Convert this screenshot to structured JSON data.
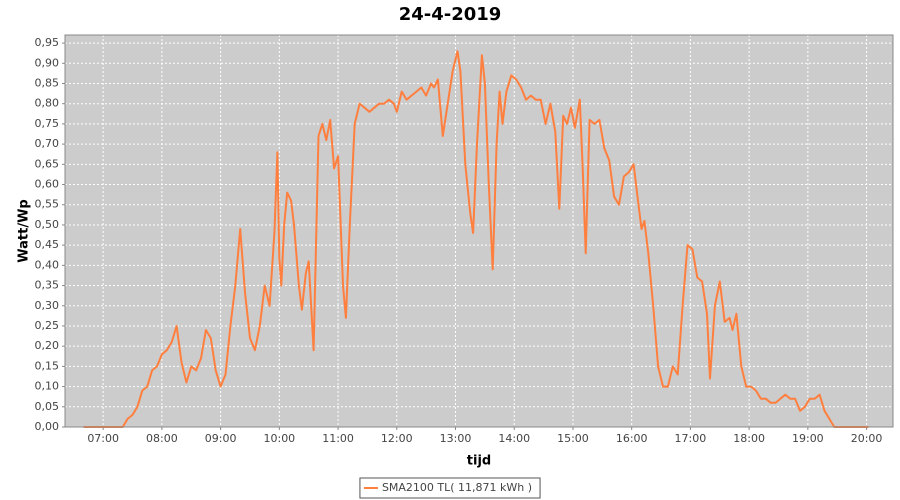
{
  "chart_data": {
    "type": "line",
    "title": "24-4-2019",
    "x_label": "tijd",
    "y_label": "Watt/Wp",
    "x": [
      "06:40",
      "06:45",
      "06:50",
      "06:55",
      "07:00",
      "07:05",
      "07:10",
      "07:15",
      "07:20",
      "07:25",
      "07:30",
      "07:35",
      "07:40",
      "07:45",
      "07:50",
      "07:55",
      "08:00",
      "08:05",
      "08:10",
      "08:15",
      "08:20",
      "08:25",
      "08:30",
      "08:35",
      "08:40",
      "08:45",
      "08:50",
      "08:55",
      "09:00",
      "09:05",
      "09:10",
      "09:15",
      "09:20",
      "09:25",
      "09:30",
      "09:35",
      "09:40",
      "09:45",
      "09:50",
      "09:55",
      "09:58",
      "10:00",
      "10:02",
      "10:05",
      "10:08",
      "10:12",
      "10:15",
      "10:20",
      "10:23",
      "10:27",
      "10:30",
      "10:35",
      "10:40",
      "10:44",
      "10:48",
      "10:52",
      "10:56",
      "11:00",
      "11:05",
      "11:08",
      "11:12",
      "11:17",
      "11:22",
      "11:27",
      "11:32",
      "11:37",
      "11:42",
      "11:47",
      "11:52",
      "11:57",
      "12:00",
      "12:05",
      "12:10",
      "12:15",
      "12:20",
      "12:25",
      "12:30",
      "12:35",
      "12:38",
      "12:42",
      "12:47",
      "12:52",
      "12:57",
      "13:02",
      "13:05",
      "13:10",
      "13:15",
      "13:18",
      "13:22",
      "13:27",
      "13:30",
      "13:34",
      "13:38",
      "13:42",
      "13:45",
      "13:48",
      "13:52",
      "13:57",
      "14:02",
      "14:07",
      "14:12",
      "14:17",
      "14:22",
      "14:27",
      "14:32",
      "14:37",
      "14:42",
      "14:46",
      "14:50",
      "14:54",
      "14:58",
      "15:02",
      "15:07",
      "15:10",
      "15:13",
      "15:17",
      "15:22",
      "15:27",
      "15:32",
      "15:37",
      "15:42",
      "15:47",
      "15:52",
      "15:57",
      "16:02",
      "16:07",
      "16:10",
      "16:13",
      "16:17",
      "16:22",
      "16:27",
      "16:32",
      "16:37",
      "16:42",
      "16:47",
      "16:52",
      "16:57",
      "17:02",
      "17:07",
      "17:12",
      "17:17",
      "17:20",
      "17:25",
      "17:30",
      "17:35",
      "17:40",
      "17:43",
      "17:47",
      "17:52",
      "17:57",
      "18:02",
      "18:07",
      "18:12",
      "18:17",
      "18:22",
      "18:27",
      "18:32",
      "18:37",
      "18:42",
      "18:47",
      "18:52",
      "18:57",
      "19:02",
      "19:07",
      "19:12",
      "19:17",
      "19:22",
      "19:27",
      "19:32",
      "19:37",
      "19:42",
      "20:02"
    ],
    "series": [
      {
        "name": "SMA2100 TL( 11,871 kWh )",
        "color": "#ff7f3f",
        "values": [
          0,
          0,
          0,
          0,
          0,
          0,
          0,
          0,
          0,
          0.02,
          0.03,
          0.05,
          0.09,
          0.1,
          0.14,
          0.15,
          0.18,
          0.19,
          0.21,
          0.25,
          0.16,
          0.11,
          0.15,
          0.14,
          0.17,
          0.24,
          0.22,
          0.14,
          0.1,
          0.13,
          0.25,
          0.35,
          0.49,
          0.33,
          0.22,
          0.19,
          0.25,
          0.35,
          0.3,
          0.48,
          0.68,
          0.42,
          0.35,
          0.5,
          0.58,
          0.56,
          0.5,
          0.35,
          0.29,
          0.38,
          0.41,
          0.19,
          0.72,
          0.75,
          0.71,
          0.76,
          0.64,
          0.67,
          0.35,
          0.27,
          0.5,
          0.75,
          0.8,
          0.79,
          0.78,
          0.79,
          0.8,
          0.8,
          0.81,
          0.8,
          0.78,
          0.83,
          0.81,
          0.82,
          0.83,
          0.84,
          0.82,
          0.85,
          0.84,
          0.86,
          0.72,
          0.8,
          0.88,
          0.93,
          0.88,
          0.65,
          0.53,
          0.48,
          0.7,
          0.92,
          0.85,
          0.6,
          0.39,
          0.7,
          0.83,
          0.75,
          0.83,
          0.87,
          0.86,
          0.84,
          0.81,
          0.82,
          0.81,
          0.81,
          0.75,
          0.8,
          0.73,
          0.54,
          0.77,
          0.75,
          0.79,
          0.74,
          0.81,
          0.64,
          0.43,
          0.76,
          0.75,
          0.76,
          0.69,
          0.66,
          0.57,
          0.55,
          0.62,
          0.63,
          0.65,
          0.55,
          0.49,
          0.51,
          0.43,
          0.3,
          0.15,
          0.1,
          0.1,
          0.15,
          0.13,
          0.3,
          0.45,
          0.44,
          0.37,
          0.36,
          0.28,
          0.12,
          0.3,
          0.36,
          0.26,
          0.27,
          0.24,
          0.28,
          0.15,
          0.1,
          0.1,
          0.09,
          0.07,
          0.07,
          0.06,
          0.06,
          0.07,
          0.08,
          0.07,
          0.07,
          0.04,
          0.05,
          0.07,
          0.07,
          0.08,
          0.04,
          0.02,
          0,
          0,
          0,
          0,
          0
        ]
      }
    ],
    "xlim": [
      "06:21",
      "20:27"
    ],
    "xticks": [
      "07:00",
      "08:00",
      "09:00",
      "10:00",
      "11:00",
      "12:00",
      "13:00",
      "14:00",
      "15:00",
      "16:00",
      "17:00",
      "18:00",
      "19:00",
      "20:00"
    ],
    "ylim": [
      0,
      0.97
    ],
    "yticks": [
      {
        "value": 0,
        "label": "0,00"
      },
      {
        "value": 0.05,
        "label": "0,05"
      },
      {
        "value": 0.1,
        "label": "0,10"
      },
      {
        "value": 0.15,
        "label": "0,15"
      },
      {
        "value": 0.2,
        "label": "0,20"
      },
      {
        "value": 0.25,
        "label": "0,25"
      },
      {
        "value": 0.3,
        "label": "0,30"
      },
      {
        "value": 0.35,
        "label": "0,35"
      },
      {
        "value": 0.4,
        "label": "0,40"
      },
      {
        "value": 0.45,
        "label": "0,45"
      },
      {
        "value": 0.5,
        "label": "0,50"
      },
      {
        "value": 0.55,
        "label": "0,55"
      },
      {
        "value": 0.6,
        "label": "0,60"
      },
      {
        "value": 0.65,
        "label": "0,65"
      },
      {
        "value": 0.7,
        "label": "0,70"
      },
      {
        "value": 0.75,
        "label": "0,75"
      },
      {
        "value": 0.8,
        "label": "0,80"
      },
      {
        "value": 0.85,
        "label": "0,85"
      },
      {
        "value": 0.9,
        "label": "0,90"
      },
      {
        "value": 0.95,
        "label": "0,95"
      }
    ],
    "grid": true,
    "legend": "bottom"
  }
}
